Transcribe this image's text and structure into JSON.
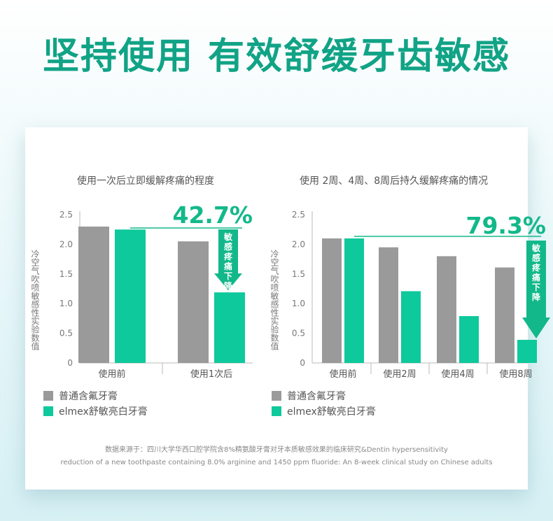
{
  "headline": "坚持使用  有效舒缓牙齿敏感",
  "legend": [
    "普通含氟牙膏",
    "elmex舒敏亮白牙膏"
  ],
  "colors": {
    "gray": "#9a9a9a",
    "green": "#0ec99c",
    "callout": "#12b88a",
    "axis": "#bbbbbb",
    "tick": "#777777"
  },
  "source": {
    "line1": "数据来源于：四川大学华西口腔学院含8%精氨酸牙膏对牙本质敏感效果的临床研究&Dentin hypersensitivity",
    "line2": "reduction of a new toothpaste containing 8.0% arginine and 1450 ppm fluoride: An 8-week clinical study on Chinese adults"
  },
  "chart_data": [
    {
      "type": "bar",
      "title": "使用一次后立即缓解疼痛的程度",
      "ylabel": "冷空气吹喷敏感性实验数值",
      "yticks": [
        "0",
        "0.5",
        "1.0",
        "1.5",
        "2.0",
        "2.5"
      ],
      "ylim": [
        0,
        2.5
      ],
      "categories": [
        "使用前",
        "使用1次后"
      ],
      "series": [
        {
          "name": "普通含氟牙膏",
          "values": [
            2.3,
            2.05
          ]
        },
        {
          "name": "elmex舒敏亮白牙膏",
          "values": [
            2.25,
            1.19
          ]
        }
      ],
      "annotation": {
        "text": "42.7%",
        "arrow_label": "敏感疼痛下降"
      }
    },
    {
      "type": "bar",
      "title": "使用 2周、4周、8周后持久缓解疼痛的情况",
      "ylabel": "冷空气吹喷敏感性实验数值",
      "yticks": [
        "0",
        "0.5",
        "1.0",
        "1.5",
        "2.0",
        "2.5"
      ],
      "ylim": [
        0,
        2.5
      ],
      "categories": [
        "使用前",
        "使用2周",
        "使用4周",
        "使用8周"
      ],
      "series": [
        {
          "name": "普通含氟牙膏",
          "values": [
            2.1,
            1.95,
            1.8,
            1.61
          ]
        },
        {
          "name": "elmex舒敏亮白牙膏",
          "values": [
            2.1,
            1.21,
            0.79,
            0.39
          ]
        }
      ],
      "annotation": {
        "text": "79.3%",
        "arrow_label": "敏感疼痛下降"
      }
    }
  ]
}
